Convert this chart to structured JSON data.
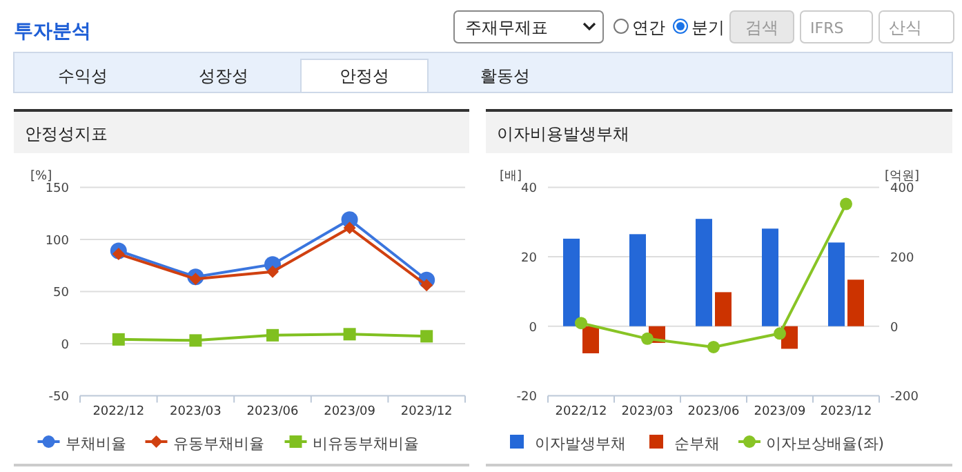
{
  "chart_data": [
    {
      "type": "other",
      "title": "투자분석",
      "annotations": [
        "주재무제표",
        "연간",
        "분기",
        "검색",
        "IFRS",
        "산식",
        "수익성",
        "성장성",
        "안정성",
        "활동성"
      ]
    },
    {
      "type": "line",
      "title": "안정성지표",
      "ylabel": "[%]",
      "categories": [
        "2022/12",
        "2023/03",
        "2023/06",
        "2023/09",
        "2023/12"
      ],
      "series": [
        {
          "name": "부채비율",
          "color": "#3a75de",
          "marker": "circle",
          "values": [
            89,
            64,
            76,
            119,
            61
          ]
        },
        {
          "name": "유동부채비율",
          "color": "#d04010",
          "marker": "diamond",
          "values": [
            86,
            62,
            69,
            111,
            56
          ]
        },
        {
          "name": "비유동부채비율",
          "color": "#80c020",
          "marker": "square",
          "values": [
            4,
            3,
            8,
            9,
            7
          ]
        }
      ],
      "ylim": [
        -50,
        150
      ],
      "yticks": [
        -50,
        0,
        50,
        100,
        150
      ],
      "grid": "y",
      "legend": "bottom"
    },
    {
      "type": "bar",
      "title": "이자비용발생부채",
      "ylabel": "[배]",
      "y2label": "[억원]",
      "categories": [
        "2022/12",
        "2023/03",
        "2023/06",
        "2023/09",
        "2023/12"
      ],
      "series": [
        {
          "name": "이자발생부채",
          "color": "#2468d8",
          "axis": "y2",
          "values": [
            252,
            265,
            309,
            281,
            241
          ]
        },
        {
          "name": "순부채",
          "color": "#cc3300",
          "axis": "y2",
          "values": [
            -78,
            -48,
            98,
            -65,
            134
          ]
        },
        {
          "name": "이자보상배율(좌)",
          "color": "#88c425",
          "type": "line",
          "marker": "circle",
          "values": [
            0.9,
            -3.6,
            -6.0,
            -2.1,
            35.2
          ]
        }
      ],
      "ylim": [
        -20,
        40
      ],
      "yticks": [
        -20,
        0,
        20,
        40
      ],
      "y2lim": [
        -200,
        400
      ],
      "y2ticks": [
        -200,
        0,
        200,
        400
      ],
      "grid": "y",
      "legend": "bottom"
    }
  ]
}
